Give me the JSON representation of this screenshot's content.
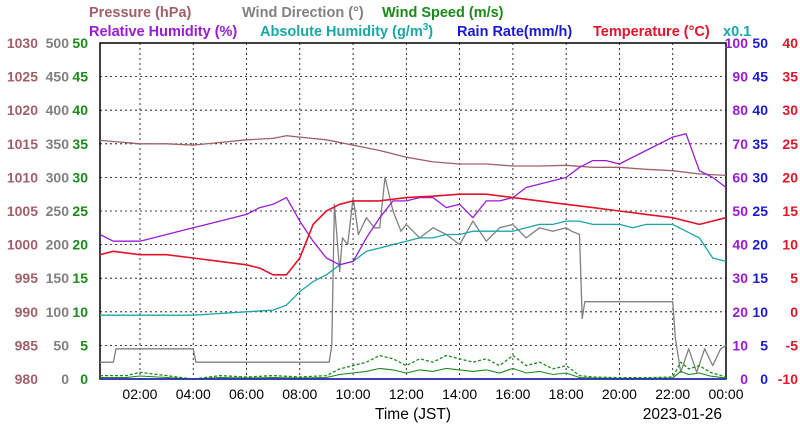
{
  "legend": {
    "row1": [
      {
        "text": "Pressure (hPa)",
        "color": "#a0606a"
      },
      {
        "text": "Wind Direction (°)",
        "color": "#808080"
      },
      {
        "text": "Wind Speed (m/s)",
        "color": "#1a8a1a"
      }
    ],
    "row2": [
      {
        "text": "Relative Humidity (%)",
        "color": "#9a1ad6"
      },
      {
        "text": "Absolute Humidity (g/m",
        "color": "#1aa6a6"
      },
      {
        "text": "Rain Rate(mm/h)",
        "color": "#1a1ad6"
      },
      {
        "text": "Temperature (°C)",
        "color": "#e0142a"
      },
      {
        "text": "x0.1",
        "color": "#1aa6a6"
      }
    ],
    "sup": "3",
    "close": ")"
  },
  "footer": {
    "xlabel": "Time (JST)",
    "date": "2023-01-26"
  },
  "chart_data": {
    "type": "line",
    "xlabel": "Time (JST)",
    "x_ticks": [
      "02:00",
      "04:00",
      "06:00",
      "08:00",
      "10:00",
      "12:00",
      "14:00",
      "16:00",
      "18:00",
      "20:00",
      "22:00",
      "00:00"
    ],
    "x_range_hours": [
      0.5,
      24
    ],
    "grid": true,
    "axes": {
      "pressure": {
        "unit": "hPa",
        "range": [
          980,
          1030
        ],
        "ticks": [
          "1030",
          "1025",
          "1020",
          "1015",
          "1010",
          "1005",
          "1000",
          "995",
          "990",
          "985",
          "980"
        ],
        "color": "#a0606a"
      },
      "wind_direction": {
        "unit": "°",
        "range": [
          0,
          500
        ],
        "ticks": [
          "500",
          "450",
          "400",
          "350",
          "300",
          "250",
          "200",
          "150",
          "100",
          "50",
          "0"
        ],
        "color": "#808080"
      },
      "wind_speed": {
        "unit": "m/s",
        "range": [
          0,
          50
        ],
        "ticks": [
          "50",
          "45",
          "40",
          "35",
          "30",
          "25",
          "20",
          "15",
          "10",
          "5",
          "0"
        ],
        "color": "#1a8a1a"
      },
      "humidity": {
        "unit": "%",
        "range": [
          0,
          100
        ],
        "ticks": [
          "100",
          "90",
          "80",
          "70",
          "60",
          "50",
          "40",
          "30",
          "20",
          "10",
          "0"
        ],
        "color": "#9a1ad6"
      },
      "rain_rate": {
        "unit": "mm/h",
        "range": [
          0,
          50
        ],
        "ticks": [
          "50",
          "45",
          "40",
          "35",
          "30",
          "25",
          "20",
          "15",
          "10",
          "5",
          "0"
        ],
        "color": "#1a1ad6"
      },
      "temperature": {
        "unit": "°C",
        "range": [
          -10,
          40
        ],
        "ticks": [
          "40",
          "35",
          "30",
          "25",
          "20",
          "15",
          "10",
          "5",
          "0",
          "-5",
          "-10"
        ],
        "color": "#e0142a"
      }
    },
    "series": [
      {
        "name": "Pressure (hPa)",
        "axis": "pressure",
        "color": "#a0606a",
        "x": [
          0.5,
          2,
          3,
          4,
          5,
          6,
          7,
          7.5,
          8,
          9,
          10,
          11,
          12,
          13,
          14,
          15,
          16,
          17,
          18,
          19,
          20,
          21,
          22,
          23,
          24
        ],
        "y": [
          1015.5,
          1015,
          1015,
          1014.8,
          1015.2,
          1015.6,
          1015.8,
          1016.2,
          1016,
          1015.6,
          1014.8,
          1014,
          1013,
          1012.3,
          1012,
          1012,
          1011.7,
          1011.7,
          1011.8,
          1011.5,
          1011.5,
          1011.2,
          1011,
          1010.5,
          1010.3
        ]
      },
      {
        "name": "Wind Direction (°)",
        "axis": "wind_direction",
        "color": "#808080",
        "x": [
          0.5,
          1,
          1.1,
          4,
          4.1,
          9.1,
          9.2,
          9.3,
          9.5,
          9.6,
          9.8,
          10,
          10.2,
          10.5,
          10.8,
          11,
          11.2,
          11.5,
          11.8,
          12,
          12.5,
          13,
          13.5,
          14,
          14.5,
          15,
          15.5,
          16,
          16.5,
          17,
          17.5,
          18,
          18.2,
          18.5,
          18.6,
          18.7,
          19,
          20,
          21,
          22,
          22.1,
          22.3,
          22.6,
          22.9,
          23.2,
          23.5,
          23.8,
          24
        ],
        "y": [
          25,
          25,
          45,
          45,
          25,
          25,
          50,
          260,
          160,
          210,
          200,
          270,
          215,
          240,
          225,
          225,
          300,
          250,
          220,
          230,
          210,
          225,
          215,
          200,
          235,
          205,
          225,
          230,
          210,
          225,
          220,
          225,
          220,
          215,
          90,
          115,
          115,
          115,
          115,
          115,
          60,
          10,
          45,
          10,
          45,
          20,
          45,
          50
        ]
      },
      {
        "name": "Wind Speed (m/s)",
        "axis": "wind_speed",
        "color": "#1a8a1a",
        "x": [
          0.5,
          1.5,
          2,
          3,
          4,
          5,
          6,
          7,
          8,
          9,
          9.5,
          10,
          10.5,
          11,
          11.5,
          12,
          12.5,
          13,
          13.5,
          14,
          14.5,
          15,
          15.5,
          16,
          16.5,
          17,
          17.5,
          18,
          18.5,
          19,
          20,
          21,
          22,
          22.3,
          22.6,
          23,
          23.4,
          24
        ],
        "y": [
          0.5,
          0.5,
          1,
          0.5,
          0,
          0.5,
          0.3,
          0.5,
          0.3,
          0.5,
          1.5,
          2,
          2.5,
          3.5,
          3,
          2,
          3,
          2.5,
          3.5,
          3,
          2.5,
          3,
          2,
          3.5,
          2,
          2.5,
          1.5,
          2,
          0.5,
          0.3,
          0.2,
          0.2,
          0.3,
          2.5,
          1.5,
          2,
          1,
          0.3
        ]
      },
      {
        "name": "Relative Humidity (%)",
        "axis": "humidity",
        "color": "#9a1ad6",
        "x": [
          0.5,
          1,
          2,
          3,
          4,
          5,
          6,
          6.5,
          7,
          7.5,
          8,
          8.5,
          9,
          9.5,
          10,
          10.5,
          11,
          11.5,
          12,
          12.5,
          13,
          13.5,
          14,
          14.5,
          15,
          15.5,
          16,
          16.5,
          17,
          17.5,
          18,
          18.5,
          19,
          19.5,
          20,
          20.5,
          21,
          21.5,
          22,
          22.5,
          23,
          23.5,
          24
        ],
        "y": [
          43,
          41,
          41,
          43,
          45,
          47,
          49,
          51,
          52,
          54,
          47,
          41,
          36,
          34,
          35,
          42,
          48,
          53,
          53,
          54,
          54,
          51,
          52,
          48,
          53,
          53,
          54,
          57,
          58,
          59,
          60,
          63,
          65,
          65,
          64,
          66,
          68,
          70,
          72,
          73,
          62,
          60,
          57
        ]
      },
      {
        "name": "Absolute Humidity (g/m³)",
        "axis": "humidity",
        "color": "#1aa6a6",
        "x": [
          0.5,
          2,
          4,
          5,
          6,
          7,
          7.5,
          8,
          8.5,
          9,
          9.5,
          10,
          10.5,
          11,
          11.5,
          12,
          12.5,
          13,
          13.5,
          14,
          14.5,
          15,
          15.5,
          16,
          16.5,
          17,
          17.5,
          18,
          18.5,
          19,
          19.5,
          20,
          20.5,
          21,
          21.5,
          22,
          22.5,
          23,
          23.5,
          24
        ],
        "y": [
          19,
          19,
          19,
          19.5,
          20,
          20.5,
          22,
          26,
          29,
          31,
          34,
          35,
          38,
          39,
          40,
          41,
          42,
          42,
          43,
          43,
          44,
          44,
          44,
          44,
          45,
          46,
          46,
          47,
          47,
          46,
          46,
          46,
          45,
          46,
          46,
          46,
          44,
          42,
          36,
          35
        ]
      },
      {
        "name": "Rain Rate(mm/h)",
        "axis": "rain_rate",
        "color": "#1a1ad6",
        "x": [
          0.5,
          24
        ],
        "y": [
          0,
          0
        ]
      },
      {
        "name": "Temperature (°C)",
        "axis": "temperature",
        "color": "#e0142a",
        "x": [
          0.5,
          1,
          2,
          3,
          4,
          5,
          6,
          6.5,
          7,
          7.5,
          8,
          8.5,
          9,
          9.5,
          10,
          10.5,
          11,
          12,
          13,
          14,
          15,
          16,
          17,
          18,
          19,
          20,
          21,
          22,
          23,
          24
        ],
        "y": [
          8.5,
          9,
          8.5,
          8.5,
          8,
          7.5,
          7,
          6.5,
          5.5,
          5.5,
          8,
          13,
          15,
          16,
          16.5,
          16.5,
          16.5,
          17,
          17.2,
          17.5,
          17.5,
          17,
          16.5,
          16,
          15.5,
          15,
          14.5,
          14,
          13,
          14
        ]
      }
    ]
  }
}
